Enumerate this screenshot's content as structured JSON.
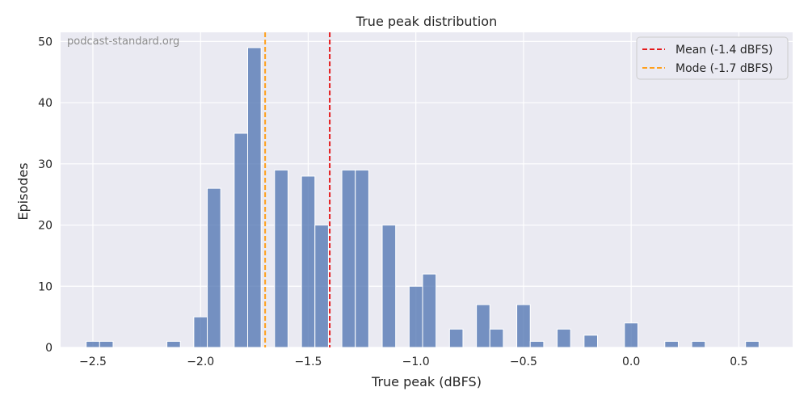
{
  "chart_data": {
    "type": "bar",
    "title": "True peak distribution",
    "xlabel": "True peak (dBFS)",
    "ylabel": "Episodes",
    "watermark": "podcast-standard.org",
    "xlim": [
      -2.65,
      0.75
    ],
    "ylim": [
      0,
      51.5
    ],
    "bin_width": 0.0625,
    "xticks": [
      -2.5,
      -2.0,
      -1.5,
      -1.0,
      -0.5,
      0.0,
      0.5
    ],
    "xtick_labels": [
      "−2.5",
      "−2.0",
      "−1.5",
      "−1.0",
      "−0.5",
      "0.0",
      "0.5"
    ],
    "yticks": [
      0,
      10,
      20,
      30,
      40,
      50
    ],
    "ytick_labels": [
      "0",
      "10",
      "20",
      "30",
      "40",
      "50"
    ],
    "grid": true,
    "legend_position": "top-right",
    "bar_color": "#4c72b0",
    "background_color": "#eaeaf2",
    "series": [
      {
        "bins": [
          {
            "x": -2.5,
            "count": 1
          },
          {
            "x": -2.4375,
            "count": 1
          },
          {
            "x": -2.125,
            "count": 1
          },
          {
            "x": -2.0,
            "count": 5
          },
          {
            "x": -1.9375,
            "count": 26
          },
          {
            "x": -1.8125,
            "count": 35
          },
          {
            "x": -1.75,
            "count": 49
          },
          {
            "x": -1.625,
            "count": 29
          },
          {
            "x": -1.5,
            "count": 28
          },
          {
            "x": -1.4375,
            "count": 20
          },
          {
            "x": -1.3125,
            "count": 29
          },
          {
            "x": -1.25,
            "count": 29
          },
          {
            "x": -1.125,
            "count": 20
          },
          {
            "x": -1.0,
            "count": 10
          },
          {
            "x": -0.9375,
            "count": 12
          },
          {
            "x": -0.8125,
            "count": 3
          },
          {
            "x": -0.6875,
            "count": 7
          },
          {
            "x": -0.625,
            "count": 3
          },
          {
            "x": -0.5,
            "count": 7
          },
          {
            "x": -0.4375,
            "count": 1
          },
          {
            "x": -0.3125,
            "count": 3
          },
          {
            "x": -0.1875,
            "count": 2
          },
          {
            "x": -0.0,
            "count": 4
          },
          {
            "x": 0.1875,
            "count": 1
          },
          {
            "x": 0.3125,
            "count": 1
          },
          {
            "x": 0.5625,
            "count": 1
          }
        ]
      }
    ],
    "reference_lines": [
      {
        "label": "Mean (-1.4 dBFS)",
        "x": -1.4,
        "color": "#e41a1c",
        "style": "dashed"
      },
      {
        "label": "Mode (-1.7 dBFS)",
        "x": -1.7,
        "color": "#ff9f1c",
        "style": "dashed"
      }
    ]
  }
}
